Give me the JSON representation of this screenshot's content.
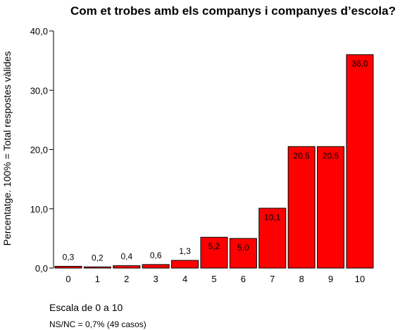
{
  "chart_data": {
    "type": "bar",
    "title": "Com et trobes amb els companys i companyes d’escola?",
    "xlabel": "Escala de 0 a 10",
    "ylabel": "Percentatge. 100% = Total respostes vàlides",
    "note": "NS/NC = 0,7% (49 casos)",
    "categories": [
      "0",
      "1",
      "2",
      "3",
      "4",
      "5",
      "6",
      "7",
      "8",
      "9",
      "10"
    ],
    "values": [
      0.3,
      0.2,
      0.4,
      0.6,
      1.3,
      5.2,
      5.0,
      10.1,
      20.5,
      20.5,
      36.0
    ],
    "data_labels": [
      "0,3",
      "0,2",
      "0,4",
      "0,6",
      "1,3",
      "5,2",
      "5,0",
      "10,1",
      "20,5",
      "20,5",
      "36,0"
    ],
    "ylim": [
      0,
      40
    ],
    "yticks": [
      0,
      10,
      20,
      30,
      40
    ],
    "ytick_labels": [
      "0,0",
      "10,0",
      "20,0",
      "30,0",
      "40,0"
    ],
    "grid": false,
    "bar_color": "#ff0000"
  }
}
